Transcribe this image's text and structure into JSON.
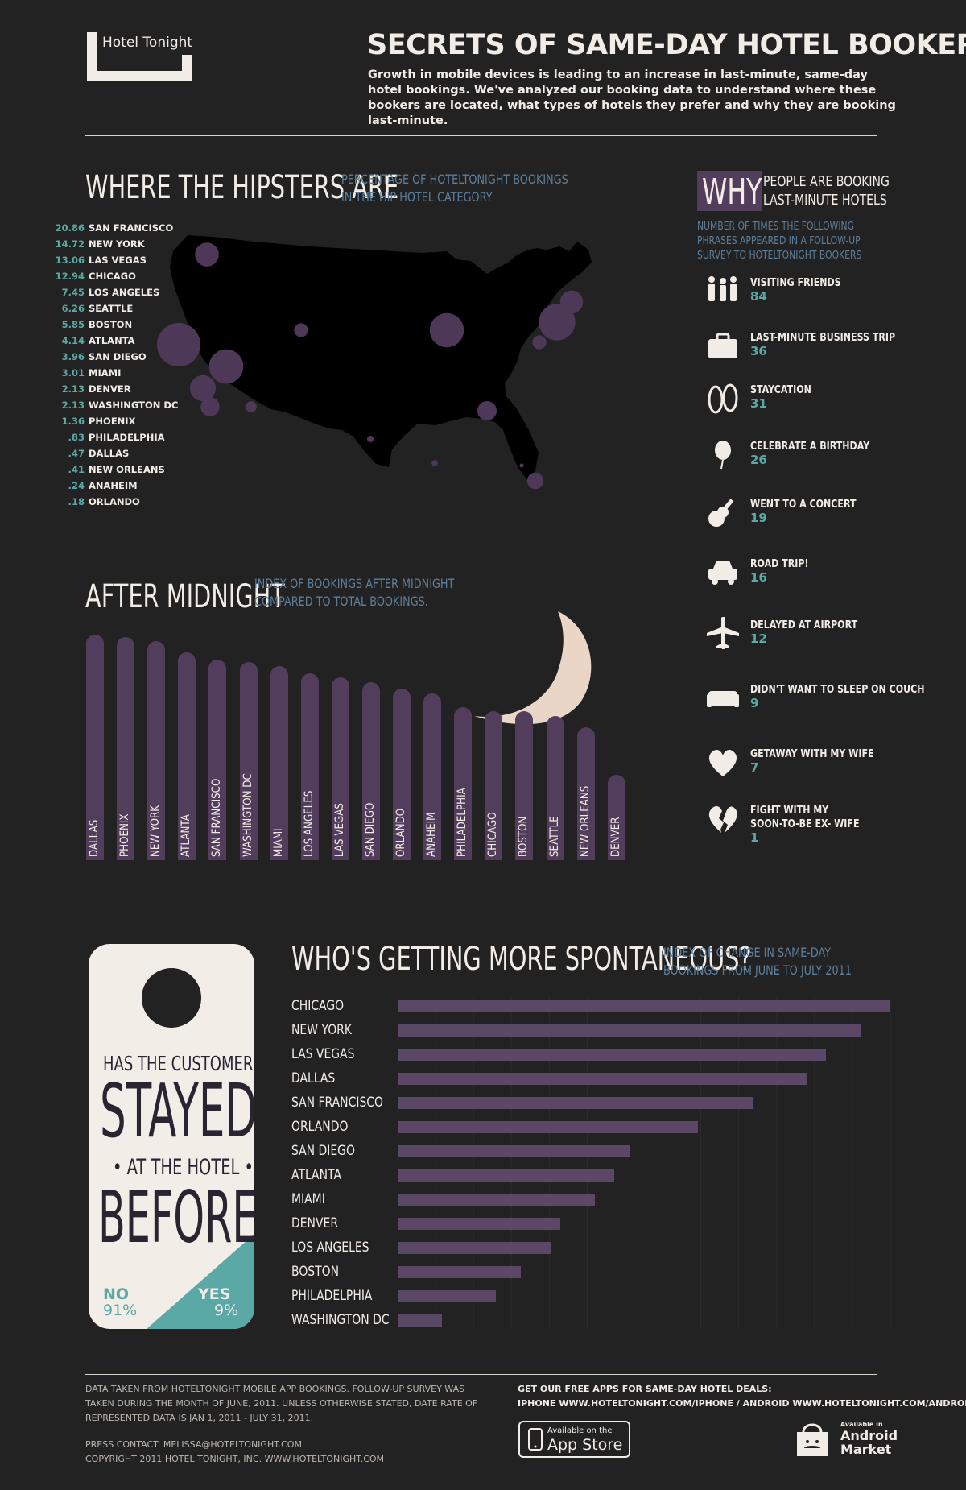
{
  "header": {
    "logo_text": "Hotel Tonight",
    "title": "SECRETS OF SAME-DAY HOTEL BOOKERS",
    "intro": "Growth in mobile devices is leading to an increase in last-minute, same-day hotel bookings. We've analyzed our booking data to understand where these bookers are located, what types of hotels they prefer and why they are booking last-minute."
  },
  "hipsters": {
    "title": "WHERE THE HIPSTERS ARE",
    "subtitle_line1": "PERCENTAGE OF HOTELTONIGHT BOOKINGS",
    "subtitle_line2": "IN THE HIP HOTEL CATEGORY"
  },
  "why": {
    "badge": "WHY",
    "title_line1": "PEOPLE ARE BOOKING",
    "title_line2": "LAST-MINUTE HOTELS",
    "sub_line1": "NUMBER OF TIMES THE FOLLOWING",
    "sub_line2": "PHRASES APPEARED IN A FOLLOW-UP",
    "sub_line3": "SURVEY TO HOTELTONIGHT BOOKERS"
  },
  "midnight": {
    "title": "AFTER MIDNIGHT",
    "subtitle_line1": "INDEX OF BOOKINGS AFTER MIDNIGHT",
    "subtitle_line2": "COMPARED TO TOTAL BOOKINGS."
  },
  "spontaneous": {
    "title": "WHO'S GETTING MORE SPONTANEOUS?",
    "subtitle_line1": "INDEX OF CHANGE IN SAME-DAY",
    "subtitle_line2": "BOOKINGS FROM JUNE TO JULY 2011"
  },
  "hanger": {
    "line1": "HAS THE CUSTOMER",
    "line2": "STAYED",
    "line3": "• AT THE HOTEL •",
    "line4": "BEFORE?",
    "no_label": "NO",
    "no_value": "91%",
    "yes_label": "YES",
    "yes_value": "9%"
  },
  "footer": {
    "note_line1": "DATA TAKEN FROM HOTELTONIGHT MOBILE APP BOOKINGS. FOLLOW-UP SURVEY WAS",
    "note_line2": "TAKEN DURING THE MONTH OF JUNE, 2011. UNLESS OTHERWISE STATED, DATE RATE OF",
    "note_line3": "REPRESENTED DATA IS JAN 1, 2011 - JULY 31, 2011.",
    "press": "PRESS CONTACT: MELISSA@HOTELTONIGHT.COM",
    "copyright": "COPYRIGHT 2011 HOTEL TONIGHT, INC. WWW.HOTELTONIGHT.COM",
    "apps_line1": "GET OUR FREE APPS FOR SAME-DAY HOTEL DEALS:",
    "apps_line2": "IPHONE WWW.HOTELTONIGHT.COM/IPHONE / ANDROID WWW.HOTELTONIGHT.COM/ANDROID",
    "appstore_small": "Available on the",
    "appstore_big": "App Store",
    "android_small": "Available in",
    "android_big1": "Android",
    "android_big2": "Market"
  },
  "colors": {
    "background": "#232222",
    "purple": "#533d5c",
    "teal": "#5aa9a6",
    "blue_text": "#5d7f9b",
    "cream": "#f2ece6"
  },
  "chart_data": [
    {
      "type": "bar",
      "title": "WHERE THE HIPSTERS ARE",
      "subtitle": "PERCENTAGE OF HOTELTONIGHT BOOKINGS IN THE HIP HOTEL CATEGORY",
      "categories": [
        "SAN FRANCISCO",
        "NEW YORK",
        "LAS VEGAS",
        "CHICAGO",
        "LOS ANGELES",
        "SEATTLE",
        "BOSTON",
        "ATLANTA",
        "SAN DIEGO",
        "MIAMI",
        "DENVER",
        "WASHINGTON DC",
        "PHOENIX",
        "PHILADELPHIA",
        "DALLAS",
        "NEW ORLEANS",
        "ANAHEIM",
        "ORLANDO"
      ],
      "labels": [
        "20.86",
        "14.72",
        "13.06",
        "12.94",
        "7.45",
        "6.26",
        "5.85",
        "4.14",
        "3.96",
        "3.01",
        "2.13",
        "2.13",
        "1.36",
        ".83",
        ".47",
        ".41",
        ".24",
        ".18"
      ],
      "values": [
        20.86,
        14.72,
        13.06,
        12.94,
        7.45,
        6.26,
        5.85,
        4.14,
        3.96,
        3.01,
        2.13,
        2.13,
        1.36,
        0.83,
        0.47,
        0.41,
        0.24,
        0.18
      ]
    },
    {
      "type": "bar",
      "title": "WHY PEOPLE ARE BOOKING LAST-MINUTE HOTELS",
      "categories": [
        "VISITING FRIENDS",
        "LAST-MINUTE BUSINESS TRIP",
        "STAYCATION",
        "CELEBRATE A BIRTHDAY",
        "WENT TO A CONCERT",
        "ROAD TRIP!",
        "DELAYED AT AIRPORT",
        "DIDN'T WANT TO SLEEP ON COUCH",
        "GETAWAY WITH MY WIFE",
        "FIGHT WITH MY SOON-TO-BE EX- WIFE"
      ],
      "label_lines": [
        [
          "VISITING FRIENDS"
        ],
        [
          "LAST-MINUTE BUSINESS TRIP"
        ],
        [
          "STAYCATION"
        ],
        [
          "CELEBRATE A BIRTHDAY"
        ],
        [
          "WENT TO A CONCERT"
        ],
        [
          "ROAD TRIP!"
        ],
        [
          "DELAYED AT AIRPORT"
        ],
        [
          "DIDN'T WANT TO SLEEP ON COUCH"
        ],
        [
          "GETAWAY WITH MY WIFE"
        ],
        [
          "FIGHT WITH MY",
          "SOON-TO-BE EX- WIFE"
        ]
      ],
      "icons": [
        "people-icon",
        "briefcase-icon",
        "flip-flops-icon",
        "balloon-icon",
        "guitar-icon",
        "car-icon",
        "airplane-icon",
        "couch-icon",
        "heart-icon",
        "broken-heart-icon"
      ],
      "values": [
        84,
        36,
        31,
        26,
        19,
        16,
        12,
        9,
        7,
        1
      ]
    },
    {
      "type": "bar",
      "title": "AFTER MIDNIGHT",
      "subtitle": "INDEX OF BOOKINGS AFTER MIDNIGHT COMPARED TO TOTAL BOOKINGS.",
      "categories": [
        "DALLAS",
        "PHOENIX",
        "NEW YORK",
        "ATLANTA",
        "SAN FRANCISCO",
        "WASHINGTON DC",
        "MIAMI",
        "LOS ANGELES",
        "LAS VEGAS",
        "SAN DIEGO",
        "ORLANDO",
        "ANAHEIM",
        "PHILADELPHIA",
        "CHICAGO",
        "BOSTON",
        "SEATTLE",
        "NEW ORLEANS",
        "DENVER"
      ],
      "values": [
        100,
        99,
        97,
        92,
        89,
        88,
        86,
        83,
        81,
        79,
        76,
        74,
        68,
        66,
        66,
        64,
        59,
        38
      ],
      "ylim": [
        0,
        100
      ]
    },
    {
      "type": "bar",
      "title": "WHO'S GETTING MORE SPONTANEOUS?",
      "subtitle": "INDEX OF CHANGE IN SAME-DAY BOOKINGS FROM JUNE TO JULY 2011",
      "categories": [
        "CHICAGO",
        "NEW YORK",
        "LAS VEGAS",
        "DALLAS",
        "SAN FRANCISCO",
        "ORLANDO",
        "SAN DIEGO",
        "ATLANTA",
        "MIAMI",
        "DENVER",
        "LOS ANGELES",
        "BOSTON",
        "PHILADELPHIA",
        "WASHINGTON DC"
      ],
      "values": [
        100,
        94,
        87,
        83,
        72,
        61,
        47,
        44,
        40,
        33,
        31,
        25,
        20,
        9
      ],
      "xlim": [
        0,
        100
      ]
    },
    {
      "type": "pie",
      "title": "HAS THE CUSTOMER STAYED AT THE HOTEL BEFORE?",
      "categories": [
        "NO",
        "YES"
      ],
      "values": [
        91,
        9
      ]
    }
  ]
}
